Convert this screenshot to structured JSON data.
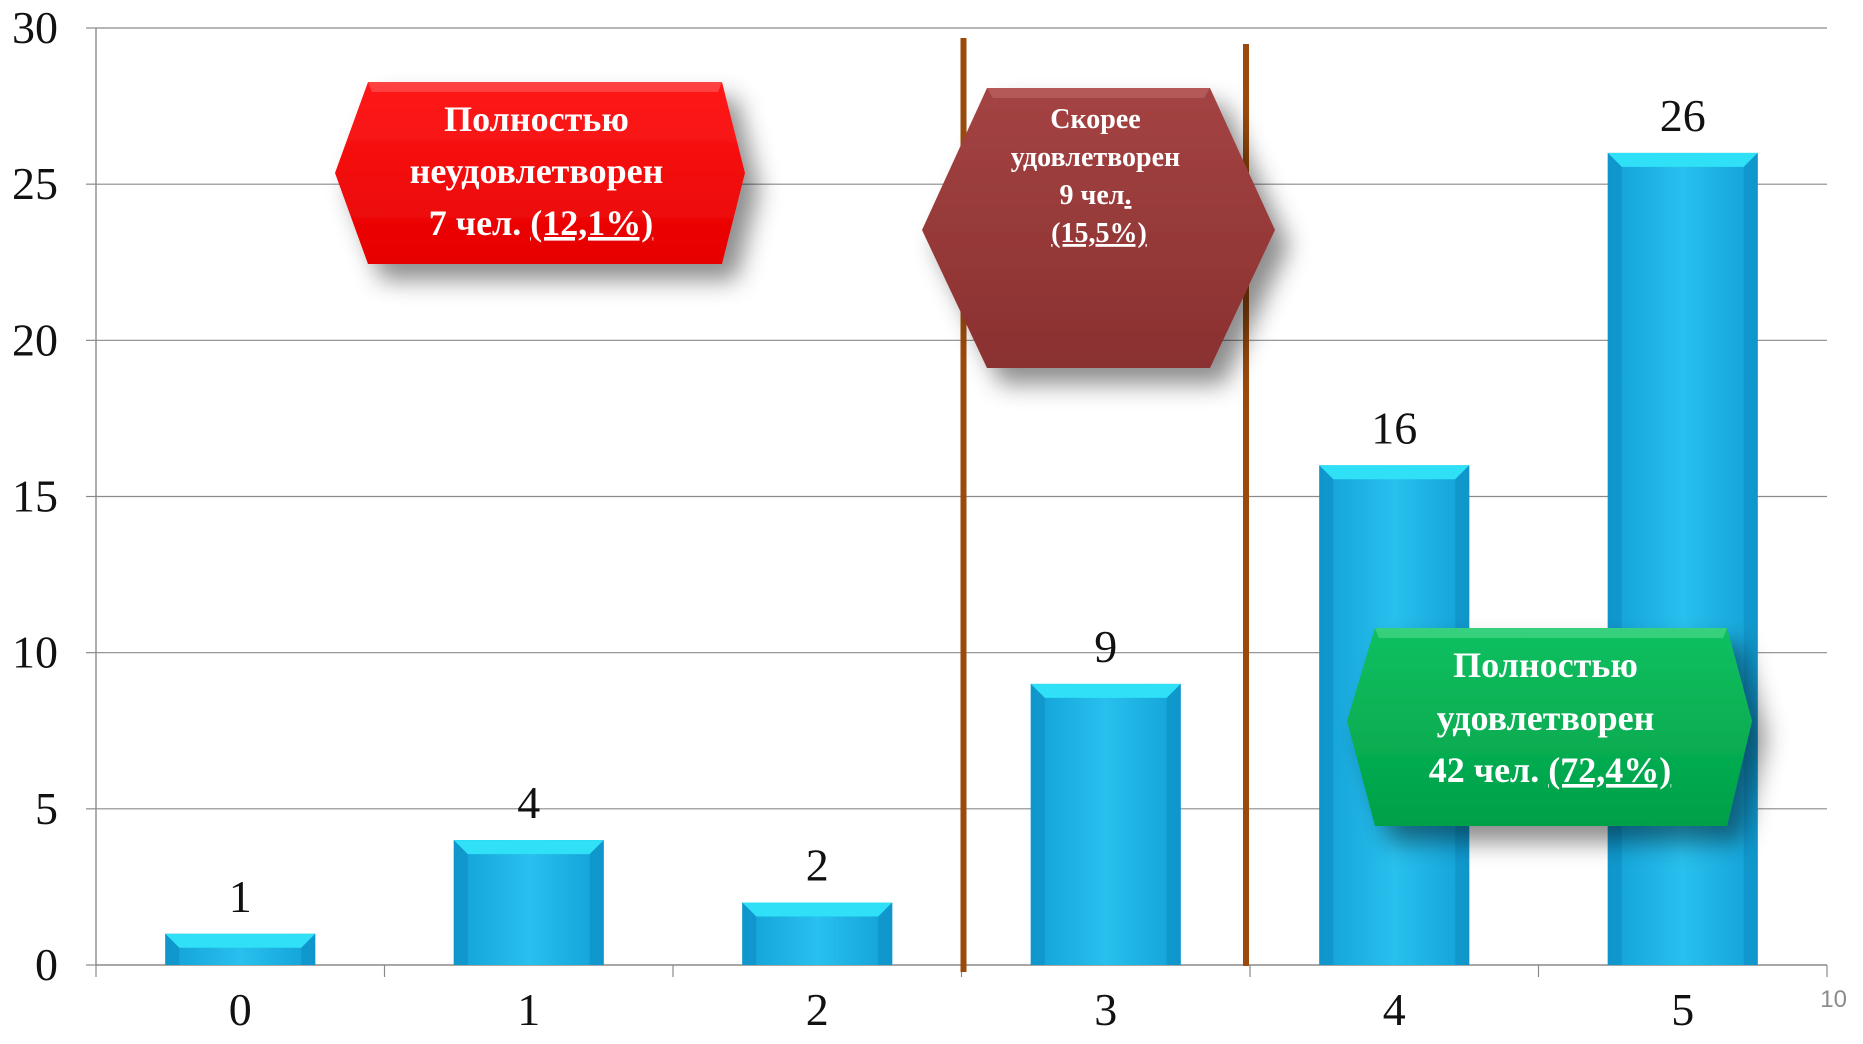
{
  "chart_data": {
    "type": "bar",
    "categories": [
      "0",
      "1",
      "2",
      "3",
      "4",
      "5"
    ],
    "values": [
      1,
      4,
      2,
      9,
      16,
      26
    ],
    "data_labels": [
      "1",
      "4",
      "2",
      "9",
      "16",
      "26"
    ],
    "y_ticks": [
      "0",
      "5",
      "10",
      "15",
      "20",
      "25",
      "30"
    ],
    "ylim": [
      0,
      30
    ],
    "grid": true,
    "bar_color": "#1fb6e8",
    "bar_top_color": "#2fe0f6",
    "divider_color": "#9a4a0c",
    "annotations": [
      {
        "lines": [
          "Полностью",
          "неудовлетворен"
        ],
        "last_line_plain": "7 чел. ",
        "last_line_underlined": "(12,1%)",
        "color": "#fe0000"
      },
      {
        "lines": [
          "Скорее",
          "удовлетворен"
        ],
        "last_line_plain": "9 чел",
        "last_line_underlined_suffix": ".",
        "extra_underlined_line": "(15,5%)",
        "color": "#963736"
      },
      {
        "lines": [
          "Полностью",
          "удовлетворен"
        ],
        "last_line_plain": "42 чел. ",
        "last_line_underlined": "(72,4%)",
        "color": "#00b050"
      }
    ]
  },
  "page_number": "10"
}
